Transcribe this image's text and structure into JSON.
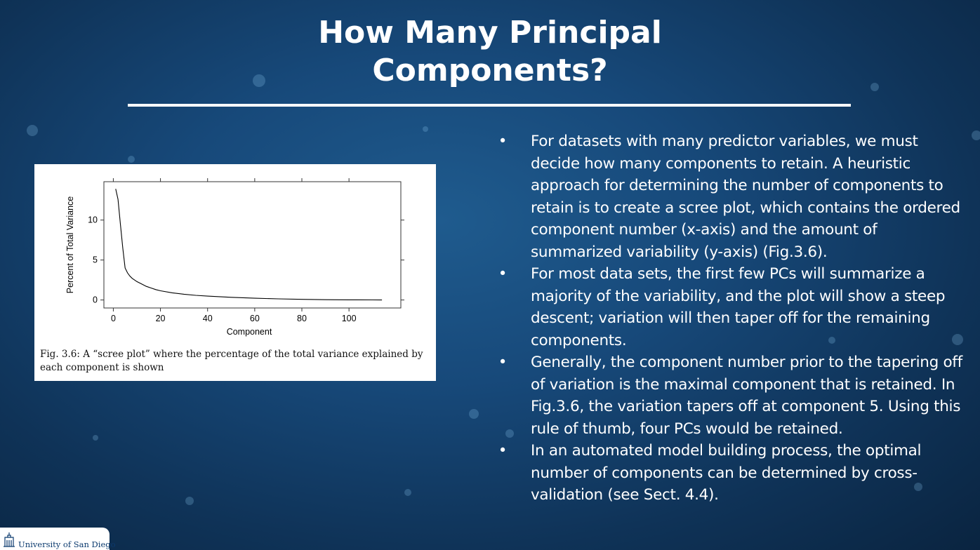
{
  "slide": {
    "title_line1": "How Many Principal",
    "title_line2": "Components?",
    "bullets": [
      "For datasets with many predictor variables, we must decide how many components to retain. A heuristic approach for determining the number of components to retain is to create a scree plot, which contains the ordered component number (x-axis) and the amount of summarized variability (y-axis) (Fig.3.6).",
      "For most data sets, the first few PCs will summarize a majority of the variability, and the plot will show a steep descent; variation will then taper off for the remaining components.",
      "Generally, the component number prior to the tapering off of variation is the maximal component that is retained. In Fig.3.6, the variation tapers off at component 5. Using this rule of thumb, four PCs would be retained.",
      "In an automated model building process, the optimal number of components can be determined by cross-validation (see Sect. 4.4)."
    ],
    "bullet_marker": "•"
  },
  "figure": {
    "caption": "Fig. 3.6: A “scree plot” where the percentage of the total variance explained by each component is shown"
  },
  "logo": {
    "text": "University of San Diego",
    "icon": "university-seal-icon"
  },
  "chart_data": {
    "type": "line",
    "xlabel": "Component",
    "ylabel": "Percent of Total Variance",
    "xlim": [
      -4,
      122
    ],
    "ylim": [
      -1,
      14.8
    ],
    "xticks": [
      0,
      20,
      40,
      60,
      80,
      100
    ],
    "yticks": [
      0,
      5,
      10
    ],
    "grid": false,
    "series": [
      {
        "x": [
          1,
          2,
          3,
          4,
          5,
          6,
          7,
          8,
          9,
          10,
          12,
          14,
          16,
          18,
          20,
          25,
          30,
          35,
          40,
          50,
          60,
          70,
          80,
          90,
          100,
          110,
          114
        ],
        "y": [
          13.9,
          12.6,
          9.5,
          6.5,
          4.0,
          3.4,
          3.0,
          2.7,
          2.5,
          2.3,
          2.0,
          1.7,
          1.5,
          1.3,
          1.15,
          0.9,
          0.72,
          0.58,
          0.48,
          0.33,
          0.22,
          0.14,
          0.08,
          0.04,
          0.02,
          0.01,
          0.0
        ]
      }
    ]
  }
}
